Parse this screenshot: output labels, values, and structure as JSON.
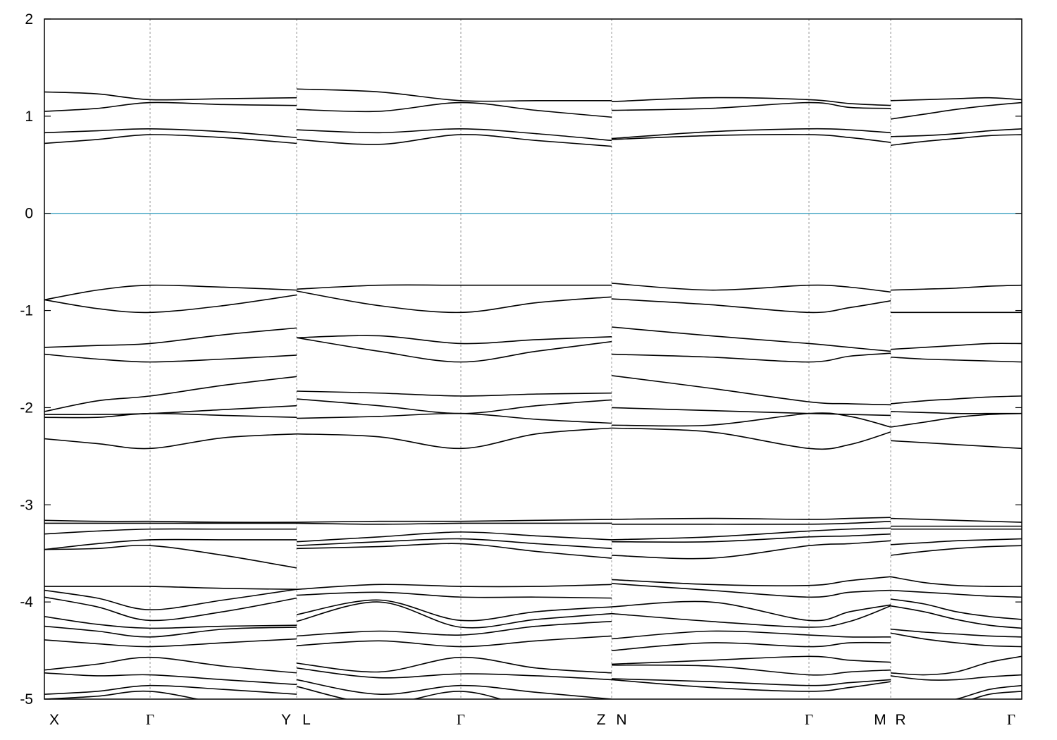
{
  "chart_data": {
    "type": "line",
    "color": "#000000",
    "ylim": [
      -5,
      2
    ],
    "yticks": [
      -5,
      -4,
      -3,
      -2,
      -1,
      0,
      1,
      2
    ],
    "xlim": [
      0,
      1387
    ],
    "xgrid": true,
    "reference_line": {
      "value": 0,
      "color": "#4aa8c6"
    },
    "kpoints": [
      {
        "label": "X",
        "x": 0
      },
      {
        "label": "Γ",
        "x": 150
      },
      {
        "label": "Y",
        "x": 358
      },
      {
        "label": "L",
        "x": 358
      },
      {
        "label": "Γ",
        "x": 591
      },
      {
        "label": "Z",
        "x": 805
      },
      {
        "label": "N",
        "x": 805
      },
      {
        "label": "Γ",
        "x": 1085
      },
      {
        "label": "M",
        "x": 1201
      },
      {
        "label": "R",
        "x": 1201
      },
      {
        "label": "Γ",
        "x": 1387
      }
    ],
    "segments": [
      {
        "x": [
          0,
          75,
          150,
          254,
          358
        ],
        "series": [
          {
            "values": [
              1.25,
              1.23,
              1.17,
              1.18,
              1.19
            ]
          },
          {
            "values": [
              1.05,
              1.08,
              1.14,
              1.12,
              1.11
            ]
          },
          {
            "values": [
              0.83,
              0.85,
              0.87,
              0.84,
              0.78
            ]
          },
          {
            "values": [
              0.72,
              0.76,
              0.81,
              0.78,
              0.72
            ]
          },
          {
            "values": [
              -0.89,
              -0.79,
              -0.74,
              -0.76,
              -0.79
            ]
          },
          {
            "values": [
              -0.89,
              -0.98,
              -1.02,
              -0.95,
              -0.84
            ]
          },
          {
            "values": [
              -1.38,
              -1.36,
              -1.34,
              -1.25,
              -1.18
            ]
          },
          {
            "values": [
              -1.45,
              -1.5,
              -1.53,
              -1.5,
              -1.46
            ]
          },
          {
            "values": [
              -2.04,
              -1.93,
              -1.88,
              -1.77,
              -1.68
            ]
          },
          {
            "values": [
              -2.07,
              -2.07,
              -2.06,
              -2.02,
              -1.98
            ]
          },
          {
            "values": [
              -2.1,
              -2.1,
              -2.06,
              -2.08,
              -2.1
            ]
          },
          {
            "values": [
              -2.32,
              -2.37,
              -2.42,
              -2.31,
              -2.27
            ]
          },
          {
            "values": [
              -3.16,
              -3.17,
              -3.17,
              -3.18,
              -3.18
            ]
          },
          {
            "values": [
              -3.19,
              -3.19,
              -3.19,
              -3.19,
              -3.19
            ]
          },
          {
            "values": [
              -3.3,
              -3.27,
              -3.25,
              -3.25,
              -3.25
            ]
          },
          {
            "values": [
              -3.46,
              -3.4,
              -3.36,
              -3.36,
              -3.36
            ]
          },
          {
            "values": [
              -3.46,
              -3.45,
              -3.42,
              -3.52,
              -3.65
            ]
          },
          {
            "values": [
              -3.84,
              -3.84,
              -3.84,
              -3.86,
              -3.87
            ]
          },
          {
            "values": [
              -3.88,
              -3.96,
              -4.08,
              -3.98,
              -3.87
            ]
          },
          {
            "values": [
              -3.95,
              -4.05,
              -4.19,
              -4.1,
              -3.96
            ]
          },
          {
            "values": [
              -4.15,
              -4.23,
              -4.27,
              -4.25,
              -4.24
            ]
          },
          {
            "values": [
              -4.25,
              -4.3,
              -4.36,
              -4.28,
              -4.26
            ]
          },
          {
            "values": [
              -4.39,
              -4.43,
              -4.46,
              -4.42,
              -4.38
            ]
          },
          {
            "values": [
              -4.7,
              -4.64,
              -4.57,
              -4.66,
              -4.73
            ]
          },
          {
            "values": [
              -4.73,
              -4.76,
              -4.75,
              -4.8,
              -4.85
            ]
          },
          {
            "values": [
              -4.95,
              -4.92,
              -4.86,
              -4.9,
              -4.95
            ]
          },
          {
            "values": [
              -5,
              -4.97,
              -4.92,
              -5.05,
              -5.15
            ]
          }
        ]
      },
      {
        "x": [
          358,
          475,
          591,
          698,
          805
        ],
        "series": [
          {
            "values": [
              1.28,
              1.25,
              1.16,
              1.16,
              1.16
            ]
          },
          {
            "values": [
              1.07,
              1.05,
              1.14,
              1.06,
              0.99
            ]
          },
          {
            "values": [
              0.86,
              0.83,
              0.87,
              0.82,
              0.75
            ]
          },
          {
            "values": [
              0.76,
              0.71,
              0.81,
              0.75,
              0.69
            ]
          },
          {
            "values": [
              -0.78,
              -0.74,
              -0.74,
              -0.74,
              -0.74
            ]
          },
          {
            "values": [
              -0.8,
              -0.95,
              -1.02,
              -0.92,
              -0.86
            ]
          },
          {
            "values": [
              -1.28,
              -1.26,
              -1.34,
              -1.3,
              -1.27
            ]
          },
          {
            "values": [
              -1.28,
              -1.42,
              -1.53,
              -1.42,
              -1.32
            ]
          },
          {
            "values": [
              -1.83,
              -1.85,
              -1.88,
              -1.86,
              -1.85
            ]
          },
          {
            "values": [
              -1.91,
              -1.98,
              -2.06,
              -1.98,
              -1.92
            ]
          },
          {
            "values": [
              -2.11,
              -2.09,
              -2.06,
              -2.12,
              -2.16
            ]
          },
          {
            "values": [
              -2.27,
              -2.3,
              -2.42,
              -2.27,
              -2.21
            ]
          },
          {
            "values": [
              -3.18,
              -3.17,
              -3.17,
              -3.16,
              -3.15
            ]
          },
          {
            "values": [
              -3.19,
              -3.2,
              -3.19,
              -3.19,
              -3.19
            ]
          },
          {
            "values": [
              -3.38,
              -3.33,
              -3.28,
              -3.32,
              -3.36
            ]
          },
          {
            "values": [
              -3.42,
              -3.38,
              -3.35,
              -3.4,
              -3.45
            ]
          },
          {
            "values": [
              -3.45,
              -3.43,
              -3.4,
              -3.48,
              -3.55
            ]
          },
          {
            "values": [
              -3.87,
              -3.82,
              -3.84,
              -3.84,
              -3.82
            ]
          },
          {
            "values": [
              -3.93,
              -3.9,
              -3.95,
              -3.95,
              -3.96
            ]
          },
          {
            "values": [
              -4.13,
              -3.98,
              -4.19,
              -4.1,
              -4.05
            ]
          },
          {
            "values": [
              -4.2,
              -4,
              -4.26,
              -4.18,
              -4.12
            ]
          },
          {
            "values": [
              -4.35,
              -4.3,
              -4.34,
              -4.25,
              -4.2
            ]
          },
          {
            "values": [
              -4.45,
              -4.4,
              -4.46,
              -4.4,
              -4.35
            ]
          },
          {
            "values": [
              -4.63,
              -4.72,
              -4.57,
              -4.68,
              -4.73
            ]
          },
          {
            "values": [
              -4.68,
              -4.78,
              -4.74,
              -4.76,
              -4.8
            ]
          },
          {
            "values": [
              -4.8,
              -4.95,
              -4.86,
              -4.93,
              -5
            ]
          },
          {
            "values": [
              -4.87,
              -5.05,
              -4.92,
              -5.1,
              -5.2
            ]
          }
        ]
      },
      {
        "x": [
          805,
          945,
          1085,
          1143,
          1201
        ],
        "series": [
          {
            "values": [
              1.15,
              1.19,
              1.17,
              1.13,
              1.11
            ]
          },
          {
            "values": [
              1.06,
              1.08,
              1.14,
              1.09,
              1.08
            ]
          },
          {
            "values": [
              0.77,
              0.84,
              0.87,
              0.86,
              0.83
            ]
          },
          {
            "values": [
              0.76,
              0.8,
              0.81,
              0.78,
              0.73
            ]
          },
          {
            "values": [
              -0.72,
              -0.79,
              -0.74,
              -0.76,
              -0.81
            ]
          },
          {
            "values": [
              -0.88,
              -0.94,
              -1.02,
              -0.97,
              -0.9
            ]
          },
          {
            "values": [
              -1.17,
              -1.26,
              -1.34,
              -1.38,
              -1.42
            ]
          },
          {
            "values": [
              -1.45,
              -1.48,
              -1.53,
              -1.47,
              -1.44
            ]
          },
          {
            "values": [
              -1.67,
              -1.8,
              -1.94,
              -1.96,
              -1.97
            ]
          },
          {
            "values": [
              -2,
              -2.03,
              -2.06,
              -2.07,
              -2.08
            ]
          },
          {
            "values": [
              -2.18,
              -2.18,
              -2.06,
              -2.09,
              -2.2
            ]
          },
          {
            "values": [
              -2.21,
              -2.25,
              -2.42,
              -2.38,
              -2.25
            ]
          },
          {
            "values": [
              -3.15,
              -3.14,
              -3.15,
              -3.14,
              -3.13
            ]
          },
          {
            "values": [
              -3.2,
              -3.2,
              -3.2,
              -3.19,
              -3.17
            ]
          },
          {
            "values": [
              -3.36,
              -3.33,
              -3.27,
              -3.25,
              -3.24
            ]
          },
          {
            "values": [
              -3.38,
              -3.38,
              -3.33,
              -3.32,
              -3.3
            ]
          },
          {
            "values": [
              -3.52,
              -3.55,
              -3.42,
              -3.4,
              -3.37
            ]
          },
          {
            "values": [
              -3.77,
              -3.82,
              -3.83,
              -3.78,
              -3.74
            ]
          },
          {
            "values": [
              -3.81,
              -3.88,
              -3.95,
              -3.9,
              -3.88
            ]
          },
          {
            "values": [
              -4.05,
              -4,
              -4.19,
              -4.1,
              -4.03
            ]
          },
          {
            "values": [
              -4.12,
              -4.2,
              -4.26,
              -4.2,
              -4.04
            ]
          },
          {
            "values": [
              -4.38,
              -4.3,
              -4.34,
              -4.36,
              -4.36
            ]
          },
          {
            "values": [
              -4.5,
              -4.42,
              -4.46,
              -4.42,
              -4.42
            ]
          },
          {
            "values": [
              -4.64,
              -4.6,
              -4.56,
              -4.6,
              -4.62
            ]
          },
          {
            "values": [
              -4.65,
              -4.66,
              -4.75,
              -4.72,
              -4.7
            ]
          },
          {
            "values": [
              -4.79,
              -4.82,
              -4.86,
              -4.83,
              -4.8
            ]
          },
          {
            "values": [
              -4.8,
              -4.88,
              -4.92,
              -4.88,
              -4.82
            ]
          }
        ]
      },
      {
        "x": [
          1201,
          1248,
          1294,
          1341,
          1387
        ],
        "series": [
          {
            "values": [
              1.16,
              1.17,
              1.18,
              1.19,
              1.17
            ]
          },
          {
            "values": [
              0.97,
              1.02,
              1.07,
              1.11,
              1.14
            ]
          },
          {
            "values": [
              0.79,
              0.8,
              0.82,
              0.85,
              0.87
            ]
          },
          {
            "values": [
              0.7,
              0.74,
              0.77,
              0.8,
              0.81
            ]
          },
          {
            "values": [
              -0.79,
              -0.78,
              -0.77,
              -0.75,
              -0.74
            ]
          },
          {
            "values": [
              -1.02,
              -1.02,
              -1.02,
              -1.02,
              -1.02
            ]
          },
          {
            "values": [
              -1.4,
              -1.38,
              -1.36,
              -1.34,
              -1.34
            ]
          },
          {
            "values": [
              -1.48,
              -1.5,
              -1.51,
              -1.52,
              -1.53
            ]
          },
          {
            "values": [
              -1.96,
              -1.93,
              -1.91,
              -1.89,
              -1.88
            ]
          },
          {
            "values": [
              -2.04,
              -2.05,
              -2.06,
              -2.06,
              -2.06
            ]
          },
          {
            "values": [
              -2.2,
              -2.15,
              -2.1,
              -2.07,
              -2.06
            ]
          },
          {
            "values": [
              -2.34,
              -2.36,
              -2.38,
              -2.4,
              -2.42
            ]
          },
          {
            "values": [
              -3.14,
              -3.15,
              -3.16,
              -3.17,
              -3.18
            ]
          },
          {
            "values": [
              -3.22,
              -3.22,
              -3.22,
              -3.22,
              -3.22
            ]
          },
          {
            "values": [
              -3.25,
              -3.25,
              -3.25,
              -3.25,
              -3.25
            ]
          },
          {
            "values": [
              -3.41,
              -3.39,
              -3.37,
              -3.36,
              -3.35
            ]
          },
          {
            "values": [
              -3.52,
              -3.48,
              -3.45,
              -3.43,
              -3.42
            ]
          },
          {
            "values": [
              -3.74,
              -3.8,
              -3.83,
              -3.84,
              -3.84
            ]
          },
          {
            "values": [
              -3.88,
              -3.9,
              -3.92,
              -3.94,
              -3.95
            ]
          },
          {
            "values": [
              -3.97,
              -4.02,
              -4.1,
              -4.15,
              -4.18
            ]
          },
          {
            "values": [
              -4.04,
              -4.1,
              -4.18,
              -4.24,
              -4.27
            ]
          },
          {
            "values": [
              -4.28,
              -4.31,
              -4.33,
              -4.35,
              -4.36
            ]
          },
          {
            "values": [
              -4.32,
              -4.38,
              -4.42,
              -4.45,
              -4.46
            ]
          },
          {
            "values": [
              -4.73,
              -4.75,
              -4.72,
              -4.62,
              -4.56
            ]
          },
          {
            "values": [
              -4.76,
              -4.8,
              -4.8,
              -4.77,
              -4.75
            ]
          },
          {
            "values": [
              -5.05,
              -5.05,
              -5,
              -4.9,
              -4.86
            ]
          },
          {
            "values": [
              -5.1,
              -5.1,
              -5.05,
              -4.95,
              -4.92
            ]
          }
        ]
      }
    ]
  }
}
